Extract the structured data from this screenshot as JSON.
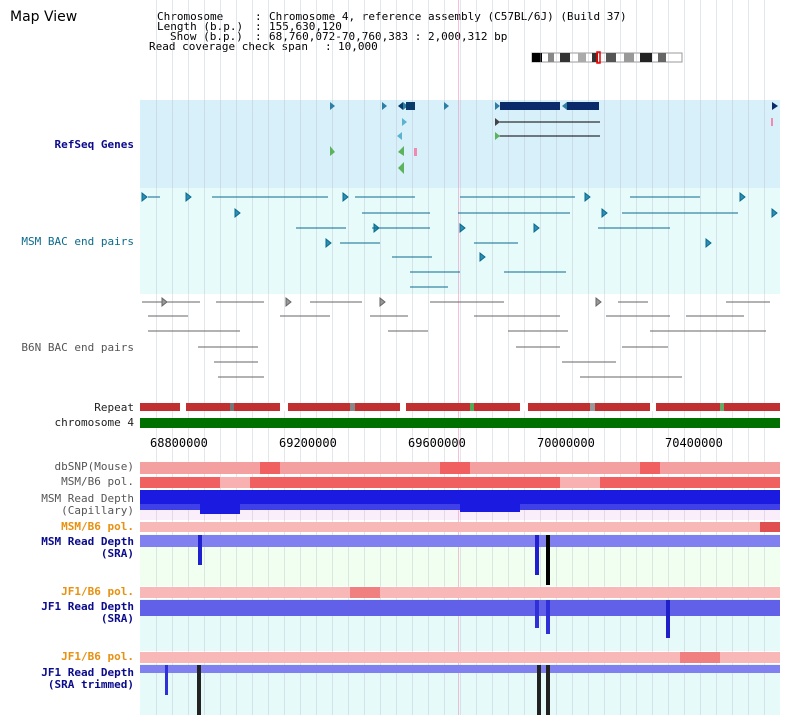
{
  "title": "Map View",
  "info": {
    "chromosome_key": "Chromosome",
    "chromosome_val": "Chromosome 4, reference assembly (C57BL/6J) (Build 37)",
    "length_key": "Length (b.p.)",
    "length_val": "155,630,120",
    "show_key": "Show (b.p.)",
    "show_val": "68,760,072-70,760,383 : 2,000,312 bp",
    "coverage_key": "Read coverage check span",
    "coverage_val": "10,000"
  },
  "tracks": {
    "refseq": "RefSeq Genes",
    "msm_bac": "MSM BAC end pairs",
    "b6n_bac": "B6N BAC end pairs",
    "repeat": "Repeat",
    "chromosome": "chromosome 4",
    "dbsnp": "dbSNP(Mouse)",
    "msm_b6_pol_1": "MSM/B6 pol.",
    "msm_read_depth_cap_1": "MSM Read Depth",
    "msm_read_depth_cap_2": "(Capillary)",
    "msm_b6_pol_2": "MSM/B6 pol.",
    "msm_read_depth_sra_1": "MSM Read Depth",
    "msm_read_depth_sra_2": "(SRA)",
    "jf1_b6_pol_1": "JF1/B6 pol.",
    "jf1_read_depth_sra_1": "JF1 Read Depth",
    "jf1_read_depth_sra_2": "(SRA)",
    "jf1_b6_pol_2": "JF1/B6 pol.",
    "jf1_read_depth_trim_1": "JF1 Read Depth",
    "jf1_read_depth_trim_2": "(SRA trimmed)"
  },
  "axis": {
    "ticks": [
      "68800000",
      "69200000",
      "69600000",
      "70000000",
      "70400000"
    ]
  },
  "colors": {
    "refseq_bg": "#d8f0fa",
    "msm_bg": "#e8fbfb",
    "depth_bg": "#f0fff0",
    "chromosome_bar": "#007000",
    "depth_blue": "#0000e0",
    "depth_light": "#7f7ff5"
  }
}
